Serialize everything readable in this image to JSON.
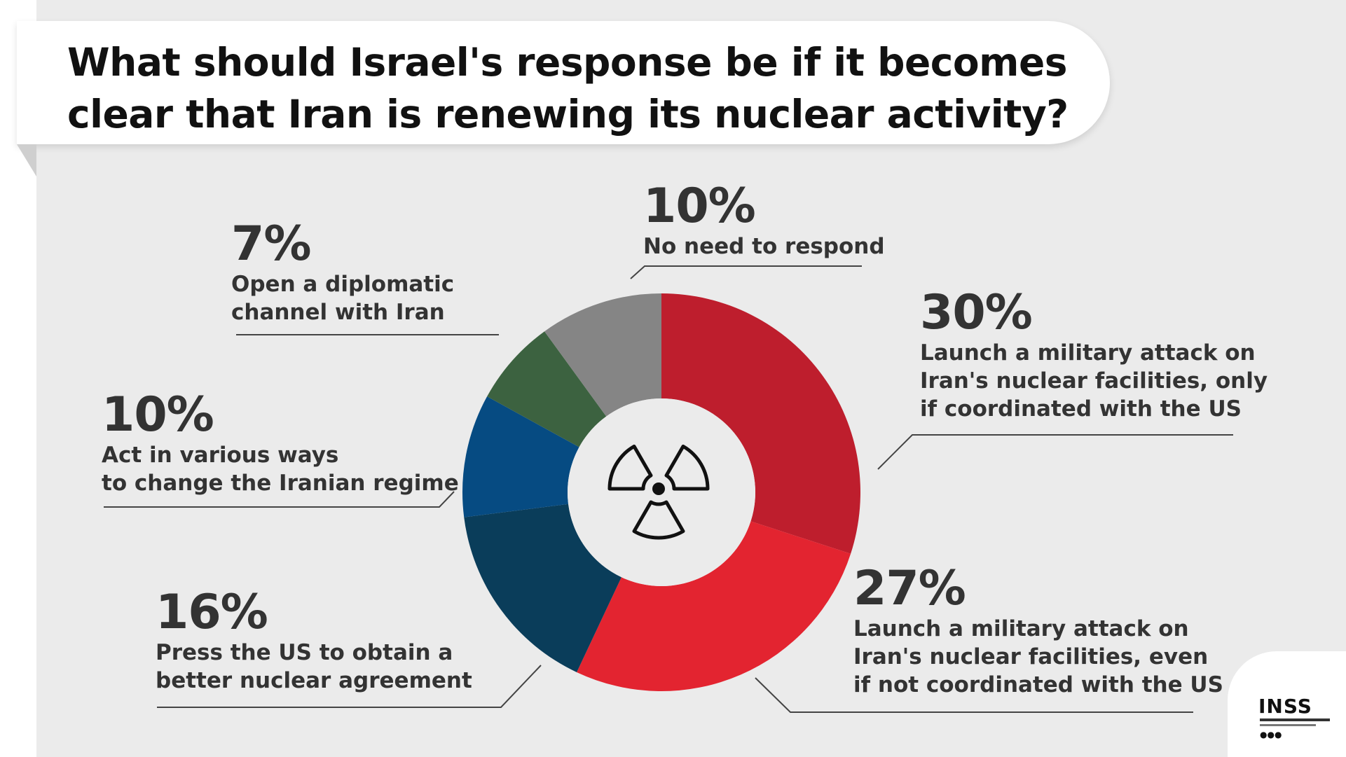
{
  "title": "What should Israel's response be if it becomes clear that Iran is renewing its nuclear activity?",
  "chart_data": {
    "type": "pie",
    "slices": [
      {
        "label": "Launch a military attack on Iran's nuclear facilities, only if coordinated with the US",
        "value": 30,
        "pct_label": "30%",
        "color": "#be1e2d"
      },
      {
        "label": "Launch a military attack on Iran's nuclear facilities, even if not coordinated with the US",
        "value": 27,
        "pct_label": "27%",
        "color": "#e32430"
      },
      {
        "label": "Press the US to obtain a better nuclear agreement",
        "value": 16,
        "pct_label": "16%",
        "color": "#0a3d5a"
      },
      {
        "label": "Act in various ways to change the Iranian regime",
        "value": 10,
        "pct_label": "10%",
        "color": "#064b82"
      },
      {
        "label": "Open a diplomatic channel with Iran",
        "value": 7,
        "pct_label": "7%",
        "color": "#3c6240"
      },
      {
        "label": "No need to respond",
        "value": 10,
        "pct_label": "10%",
        "color": "#858585"
      }
    ],
    "center_icon": "radiation-icon"
  },
  "labels": {
    "s0": {
      "lines": [
        "Launch a military attack on",
        "Iran's nuclear facilities, only",
        "if coordinated with the US"
      ]
    },
    "s1": {
      "lines": [
        "Launch a military attack on",
        "Iran's nuclear facilities, even",
        "if not coordinated with the US"
      ]
    },
    "s2": {
      "lines": [
        "Press the US to obtain a",
        "better nuclear agreement"
      ]
    },
    "s3": {
      "lines": [
        "Act in various ways",
        "to change the Iranian regime"
      ]
    },
    "s4": {
      "lines": [
        "Open a diplomatic",
        "channel with Iran"
      ]
    },
    "s5": {
      "lines": [
        "No need to respond"
      ]
    }
  },
  "logo": {
    "name": "INSS",
    "icon": "inss-logo"
  }
}
